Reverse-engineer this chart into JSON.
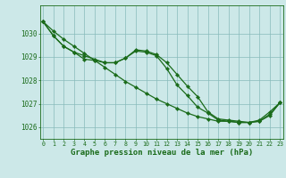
{
  "title": "Graphe pression niveau de la mer (hPa)",
  "hours": [
    0,
    1,
    2,
    3,
    4,
    5,
    6,
    7,
    8,
    9,
    10,
    11,
    12,
    13,
    14,
    15,
    16,
    17,
    18,
    19,
    20,
    21,
    22,
    23
  ],
  "line_straight": [
    1030.5,
    1030.1,
    1029.75,
    1029.45,
    1029.15,
    1028.85,
    1028.55,
    1028.25,
    1027.95,
    1027.7,
    1027.45,
    1027.2,
    1027.0,
    1026.8,
    1026.6,
    1026.45,
    1026.35,
    1026.25,
    1026.25,
    1026.2,
    1026.2,
    1026.25,
    1026.5,
    1027.05
  ],
  "line_wavy1": [
    1030.5,
    1029.9,
    1029.45,
    1029.2,
    1028.9,
    1028.85,
    1028.75,
    1028.75,
    1028.95,
    1029.25,
    1029.2,
    1029.05,
    1028.5,
    1027.8,
    1027.35,
    1026.85,
    1026.6,
    1026.3,
    1026.25,
    1026.2,
    1026.2,
    1026.25,
    1026.55,
    1027.05
  ],
  "line_wavy2": [
    1030.5,
    1029.9,
    1029.45,
    1029.2,
    1029.05,
    1028.9,
    1028.75,
    1028.75,
    1028.95,
    1029.3,
    1029.25,
    1029.1,
    1028.75,
    1028.25,
    1027.75,
    1027.3,
    1026.65,
    1026.35,
    1026.3,
    1026.25,
    1026.2,
    1026.3,
    1026.65,
    1027.05
  ],
  "line_color": "#1a6b1a",
  "bg_color": "#cce8e8",
  "grid_color": "#88bbbb",
  "ylim": [
    1025.5,
    1031.2
  ],
  "yticks": [
    1026,
    1027,
    1028,
    1029,
    1030
  ],
  "marker": "D",
  "marker_size": 2.2,
  "linewidth": 0.9
}
